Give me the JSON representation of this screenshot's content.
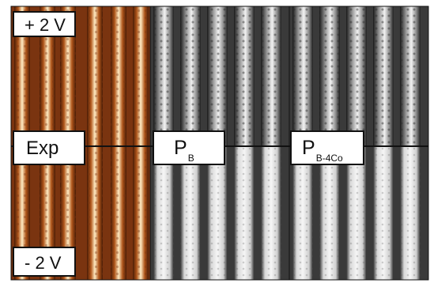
{
  "figure": {
    "panels": [
      {
        "name": "experimental",
        "colormap": "orange-afm"
      },
      {
        "name": "simulation-pb",
        "colormap": "grayscale"
      },
      {
        "name": "simulation-pb-4co",
        "colormap": "grayscale"
      }
    ],
    "labels": {
      "top_bias": "+ 2 V",
      "bottom_bias": "- 2 V",
      "exp": "Exp",
      "pb_main": "P",
      "pb_sub": "B",
      "pbc_main": "P",
      "pbc_sub": "B-4Co"
    },
    "colors": {
      "afm_dark": "#5a2408",
      "afm_mid": "#c8641c",
      "afm_light": "#fff2d2",
      "sim_dark": "#1c1c1c",
      "sim_light": "#f4f4f4",
      "divider": "#111111"
    }
  }
}
